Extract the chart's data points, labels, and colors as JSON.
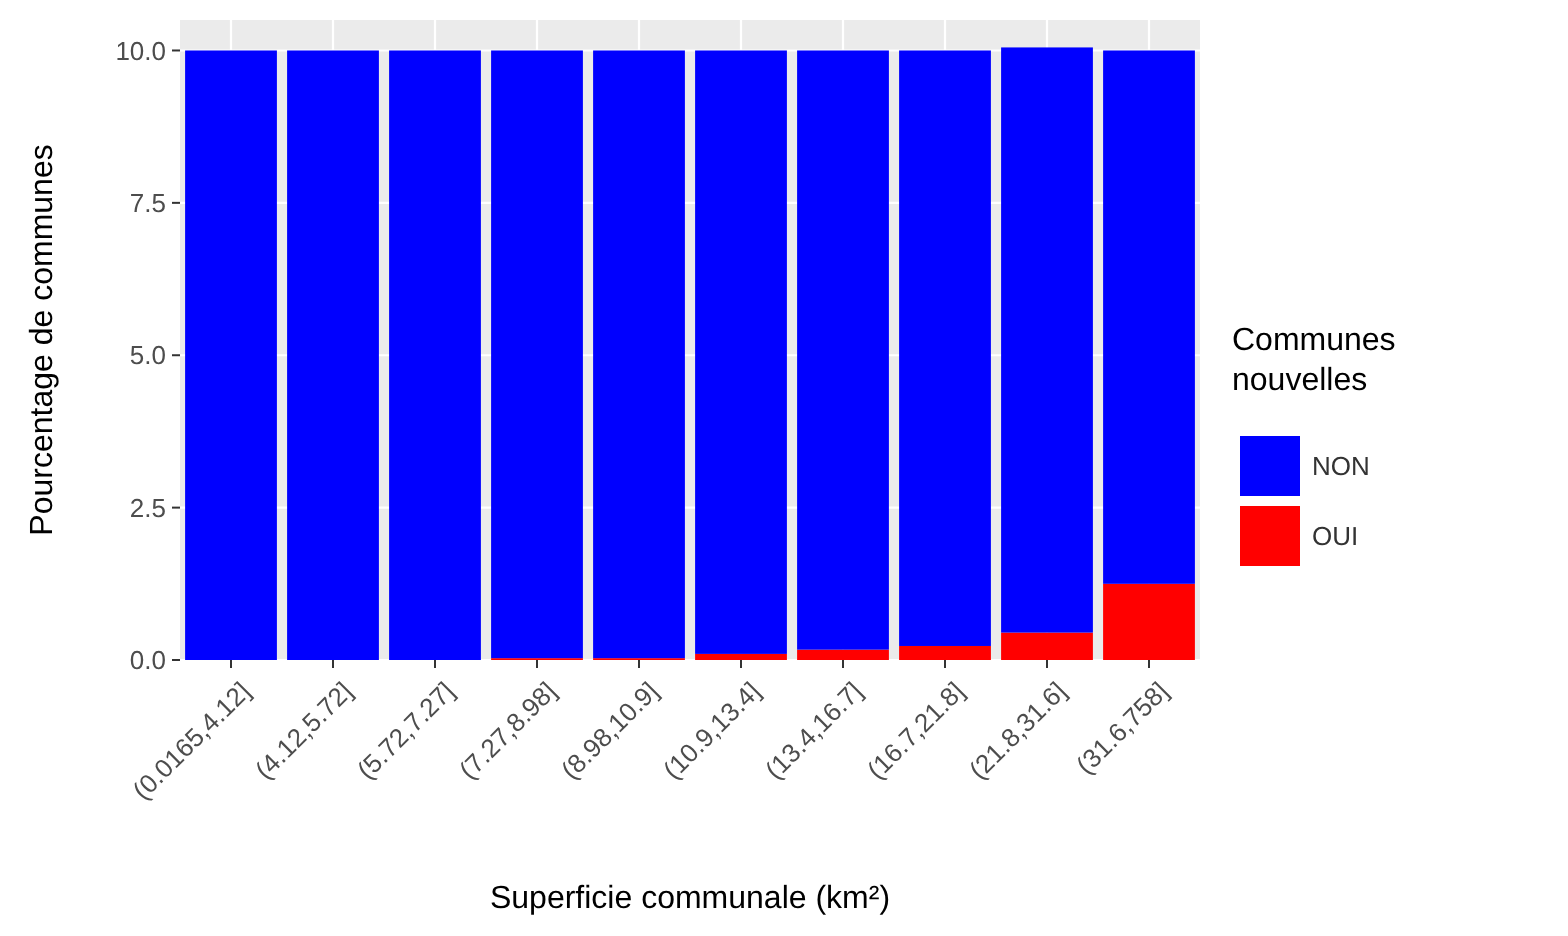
{
  "chart_data": {
    "type": "bar",
    "stacked": true,
    "xlabel": "Superficie communale (km²)",
    "ylabel": "Pourcentage de communes",
    "legend_title": "Communes nouvelles",
    "legend": "right",
    "categories": [
      "(0.0165,4.12]",
      "(4.12,5.72]",
      "(5.72,7.27]",
      "(7.27,8.98]",
      "(8.98,10.9]",
      "(10.9,13.4]",
      "(13.4,16.7]",
      "(16.7,21.8]",
      "(21.8,31.6]",
      "(31.6,758]"
    ],
    "series": [
      {
        "name": "OUI",
        "color": "#ff0000",
        "values": [
          0,
          0,
          0,
          0.03,
          0.03,
          0.1,
          0.17,
          0.23,
          0.45,
          1.25
        ]
      },
      {
        "name": "NON",
        "color": "#0000ff",
        "values": [
          10,
          10,
          10,
          9.97,
          9.97,
          9.9,
          9.83,
          9.77,
          9.6,
          8.75
        ]
      }
    ],
    "ylim": [
      0,
      10.5
    ],
    "yticks": [
      {
        "value": 0,
        "label": "0.0"
      },
      {
        "value": 2.5,
        "label": "2.5"
      },
      {
        "value": 5,
        "label": "5.0"
      },
      {
        "value": 7.5,
        "label": "7.5"
      },
      {
        "value": 10,
        "label": "10.0"
      }
    ],
    "grid": true
  }
}
